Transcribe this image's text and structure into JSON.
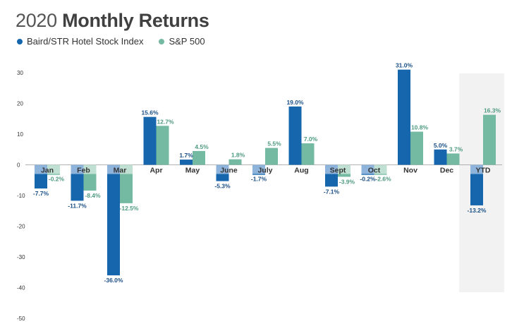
{
  "title_year": "2020",
  "title_rest": "Monthly Returns",
  "colors": {
    "baird": "#1566ad",
    "sp": "#74b9a2",
    "baird_light": "#8fb4dc",
    "sp_light": "#bfe0d3",
    "ytd_bg": "#f2f2f2"
  },
  "chart_data": {
    "type": "bar",
    "title": "2020 Monthly Returns",
    "xlabel": "",
    "ylabel": "",
    "ylim": [
      -50,
      30
    ],
    "yticks": [
      30,
      20,
      10,
      0,
      -10,
      -20,
      -30,
      -40,
      -50
    ],
    "grid": false,
    "legend_position": "top-left",
    "categories": [
      "Jan",
      "Feb",
      "Mar",
      "Apr",
      "May",
      "June",
      "July",
      "Aug",
      "Sept",
      "Oct",
      "Nov",
      "Dec",
      "YTD"
    ],
    "series": [
      {
        "name": "Baird/STR Hotel Stock Index",
        "values": [
          -7.7,
          -11.7,
          -36.0,
          15.6,
          1.7,
          -5.3,
          -1.7,
          19.0,
          -7.1,
          -0.2,
          31.0,
          5.0,
          -13.2
        ],
        "labels": [
          "-7.7%",
          "-11.7%",
          "-36.0%",
          "15.6%",
          "1.7%",
          "-5.3%",
          "-1.7%",
          "19.0%",
          "-7.1%",
          "-0.2%",
          "31.0%",
          "5.0%",
          "-13.2%"
        ]
      },
      {
        "name": "S&P 500",
        "values": [
          -0.2,
          -8.4,
          -12.5,
          12.7,
          4.5,
          1.8,
          5.5,
          7.0,
          -3.9,
          -2.6,
          10.8,
          3.7,
          16.3
        ],
        "labels": [
          "-0.2%",
          "-8.4%",
          "-12.5%",
          "12.7%",
          "4.5%",
          "1.8%",
          "5.5%",
          "7.0%",
          "-3.9%",
          "-2.6%",
          "10.8%",
          "3.7%",
          "16.3%"
        ]
      }
    ]
  }
}
